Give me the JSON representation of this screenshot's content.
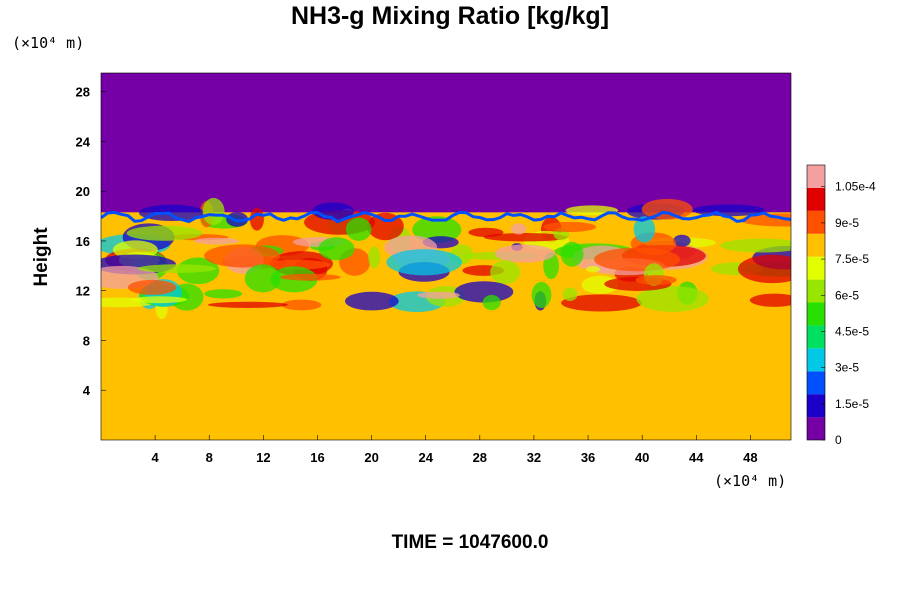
{
  "chart_data": {
    "type": "heatmap",
    "title": "NH3-g Mixing Ratio [kg/kg]",
    "ylabel": "Height",
    "x_unit": "(×10⁴ m)",
    "y_unit": "(×10⁴ m)",
    "x_ticks": [
      "4",
      "8",
      "12",
      "16",
      "20",
      "24",
      "28",
      "32",
      "36",
      "40",
      "44",
      "48"
    ],
    "y_ticks": [
      "4",
      "8",
      "12",
      "16",
      "20",
      "24",
      "28"
    ],
    "xlim": [
      0,
      51
    ],
    "ylim": [
      0,
      29.5
    ],
    "colorbar": {
      "ticks": [
        "0",
        "1.5e-5",
        "3e-5",
        "4.5e-5",
        "6e-5",
        "7.5e-5",
        "9e-5",
        "1.05e-4"
      ],
      "tick_values": [
        0,
        1.5e-05,
        3e-05,
        4.5e-05,
        6e-05,
        7.5e-05,
        9e-05,
        0.000105
      ],
      "range": [
        0,
        0.000114
      ],
      "colors": [
        "#7400a6",
        "#1a00c8",
        "#0050ff",
        "#00c8e6",
        "#00e060",
        "#28e000",
        "#98e600",
        "#e2ff00",
        "#ffc000",
        "#ff5000",
        "#e00000",
        "#f4a0a0"
      ]
    },
    "fields": {
      "upper_value": 0,
      "lower_value": 7.7e-05,
      "top_boundary_height": 18.3,
      "peak_value": 0.00011
    },
    "grid": false
  },
  "time": {
    "text": "TIME = 1047600.0"
  },
  "colors": {
    "background": "#ffffff",
    "upper_field": "#7400a6",
    "lower_field": "#e2ff00"
  }
}
